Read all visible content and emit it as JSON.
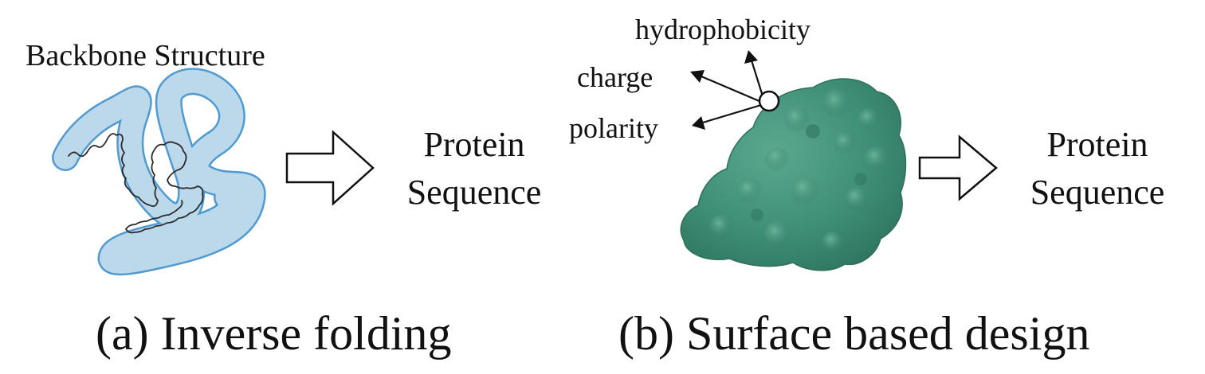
{
  "panel_a": {
    "structure_label": "Backbone Structure",
    "output_line1": "Protein",
    "output_line2": "Sequence",
    "caption": "(a) Inverse folding"
  },
  "panel_b": {
    "properties": [
      "hydrophobicity",
      "charge",
      "polarity"
    ],
    "output_line1": "Protein",
    "output_line2": "Sequence",
    "caption": "(b) Surface based design"
  },
  "colors": {
    "ribbon_fill": "#b9d7ea",
    "ribbon_edge": "#4f9bd1",
    "surface_green": "#3f8f77",
    "text": "#111111"
  }
}
